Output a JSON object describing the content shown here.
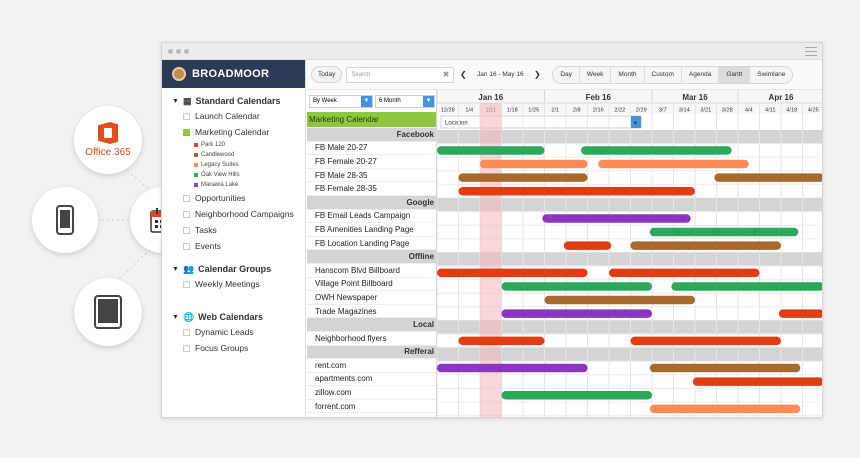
{
  "left_apps": {
    "office_label": "Office 365"
  },
  "window": {
    "brand": "BROADMOOR"
  },
  "sidebar": {
    "groups": [
      {
        "title": "Standard Calendars",
        "items": [
          "Launch Calendar",
          "Marketing Calendar"
        ]
      },
      {
        "title": "Calendar Groups",
        "items": [
          "Weekly Meetings"
        ]
      },
      {
        "title": "Web Calendars",
        "items": [
          "Dynamic Leads",
          "Focus Groups"
        ]
      }
    ],
    "sub_items": [
      {
        "label": "Park 120",
        "color": "#e8433b"
      },
      {
        "label": "Candlewood",
        "color": "#a6612d"
      },
      {
        "label": "Legacy Suites",
        "color": "#ff8c52"
      },
      {
        "label": "Oak View Hills",
        "color": "#2ab75a"
      },
      {
        "label": "Manawa Lake",
        "color": "#8e3fc8"
      }
    ],
    "extra_items": [
      "Opportunities",
      "Neighborhood Campaigns",
      "Tasks",
      "Events"
    ]
  },
  "toolbar": {
    "today": "Today",
    "search_placeholder": "Search",
    "range": "Jan 16 - May 16",
    "views": [
      "Day",
      "Week",
      "Month",
      "Custom",
      "Agenda",
      "Gantt",
      "Swimlane"
    ],
    "active_view": "Gantt"
  },
  "controls": {
    "group_by": "By Week",
    "span": "6 Month",
    "calendar": "Marketing Calendar",
    "field": "Location"
  },
  "timeline": {
    "months": [
      {
        "label": "Jan 16",
        "start": 0,
        "span": 5
      },
      {
        "label": "Feb 16",
        "start": 5,
        "span": 5
      },
      {
        "label": "Mar 16",
        "start": 10,
        "span": 4
      },
      {
        "label": "Apr 16",
        "start": 14,
        "span": 4
      }
    ],
    "weeks": [
      "12/28",
      "1/4",
      "1/11",
      "1/18",
      "1/25",
      "2/1",
      "2/8",
      "2/16",
      "2/22",
      "2/29",
      "3/7",
      "3/14",
      "3/21",
      "3/28",
      "4/4",
      "4/11",
      "4/18",
      "4/25"
    ],
    "today_week": 2,
    "colors": {
      "green": "#2aa95b",
      "orange": "#fb8c55",
      "brown": "#a86a2c",
      "red": "#e03d12",
      "purple": "#8b35c0"
    }
  },
  "rows": [
    {
      "type": "category",
      "label": "Facebook"
    },
    {
      "type": "task",
      "label": "FB Male 20-27",
      "bars": [
        {
          "start": 0,
          "end": 5,
          "color": "green"
        },
        {
          "start": 6.7,
          "end": 13.7,
          "color": "green"
        }
      ]
    },
    {
      "type": "task",
      "label": "FB Female 20-27",
      "bars": [
        {
          "start": 2,
          "end": 7,
          "color": "orange"
        },
        {
          "start": 7.5,
          "end": 14.5,
          "color": "orange"
        }
      ]
    },
    {
      "type": "task",
      "label": "FB Male 28-35",
      "bars": [
        {
          "start": 1,
          "end": 7,
          "color": "brown"
        },
        {
          "start": 12.9,
          "end": 18,
          "color": "brown"
        }
      ]
    },
    {
      "type": "task",
      "label": "FB Female 28-35",
      "bars": [
        {
          "start": 1,
          "end": 12,
          "color": "red"
        }
      ]
    },
    {
      "type": "category",
      "label": "Google"
    },
    {
      "type": "task",
      "label": "FB Email Leads Campaign",
      "bars": [
        {
          "start": 4.9,
          "end": 11.8,
          "color": "purple"
        }
      ]
    },
    {
      "type": "task",
      "label": "FB Amenities Landing Page",
      "bars": [
        {
          "start": 9.9,
          "end": 16.8,
          "color": "green"
        }
      ]
    },
    {
      "type": "task",
      "label": "FB Location Landing Page",
      "bars": [
        {
          "start": 5.9,
          "end": 8.1,
          "color": "red"
        },
        {
          "start": 9,
          "end": 16,
          "color": "brown"
        }
      ]
    },
    {
      "type": "category",
      "label": "Offline"
    },
    {
      "type": "task",
      "label": "Hanscom Blvd Billboard",
      "bars": [
        {
          "start": 0,
          "end": 7,
          "color": "red"
        },
        {
          "start": 8,
          "end": 15,
          "color": "red"
        }
      ]
    },
    {
      "type": "task",
      "label": "Village Point Billboard",
      "bars": [
        {
          "start": 3,
          "end": 10,
          "color": "green"
        },
        {
          "start": 10.9,
          "end": 18,
          "color": "green"
        }
      ]
    },
    {
      "type": "task",
      "label": "OWH Newspaper",
      "bars": [
        {
          "start": 5,
          "end": 12,
          "color": "brown"
        }
      ]
    },
    {
      "type": "task",
      "label": "Trade Magazines",
      "bars": [
        {
          "start": 3,
          "end": 10,
          "color": "purple"
        },
        {
          "start": 15.9,
          "end": 18,
          "color": "red"
        }
      ]
    },
    {
      "type": "category",
      "label": "Local"
    },
    {
      "type": "task",
      "label": "Neighborhood flyers",
      "bars": [
        {
          "start": 1,
          "end": 5,
          "color": "red"
        },
        {
          "start": 9,
          "end": 16,
          "color": "red"
        }
      ]
    },
    {
      "type": "category",
      "label": "Refferal"
    },
    {
      "type": "task",
      "label": "rent.com",
      "bars": [
        {
          "start": 0,
          "end": 7,
          "color": "purple"
        },
        {
          "start": 9.9,
          "end": 16.9,
          "color": "brown"
        }
      ]
    },
    {
      "type": "task",
      "label": "apartments.com",
      "bars": [
        {
          "start": 11.9,
          "end": 18,
          "color": "red"
        }
      ]
    },
    {
      "type": "task",
      "label": "zillow.com",
      "bars": [
        {
          "start": 3,
          "end": 10,
          "color": "green"
        }
      ]
    },
    {
      "type": "task",
      "label": "forrent.com",
      "bars": [
        {
          "start": 9.9,
          "end": 16.9,
          "color": "orange"
        }
      ]
    }
  ]
}
